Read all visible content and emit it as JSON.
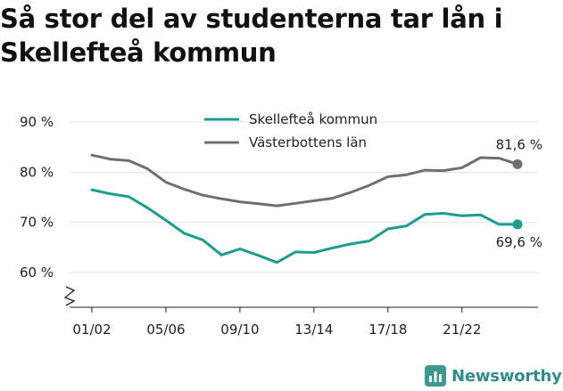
{
  "title": "Så stor del av studenterna tar lån i Skellefteå kommun",
  "brand": {
    "name": "Newsworthy",
    "icon": "bar-chart-icon",
    "color": "#3a9a92"
  },
  "chart_data": {
    "type": "line",
    "title": "Så stor del av studenterna tar lån i Skellefteå kommun",
    "xlabel": "",
    "ylabel": "",
    "ylim": [
      55,
      90
    ],
    "y_ticks": [
      {
        "value": 90,
        "label": "90 %"
      },
      {
        "value": 80,
        "label": "80 %"
      },
      {
        "value": 70,
        "label": "70 %"
      },
      {
        "value": 60,
        "label": "60 %"
      }
    ],
    "axis_break": true,
    "grid": true,
    "legend_position": "top-center",
    "x": [
      "01/02",
      "02/03",
      "03/04",
      "04/05",
      "05/06",
      "06/07",
      "07/08",
      "08/09",
      "09/10",
      "10/11",
      "11/12",
      "12/13",
      "13/14",
      "14/15",
      "15/16",
      "16/17",
      "17/18",
      "18/19",
      "19/20",
      "20/21",
      "21/22",
      "22/23",
      "23/24",
      "24/25"
    ],
    "x_tick_labels": [
      "01/02",
      "05/06",
      "09/10",
      "13/14",
      "17/18",
      "21/22"
    ],
    "series": [
      {
        "name": "Skellefteå kommun",
        "color": "#1a9e92",
        "values": [
          76.5,
          75.7,
          75.1,
          72.9,
          70.4,
          67.8,
          66.5,
          63.5,
          64.7,
          63.4,
          62.0,
          64.1,
          64.0,
          64.9,
          65.7,
          66.3,
          68.7,
          69.3,
          71.6,
          71.8,
          71.3,
          71.5,
          69.6,
          69.6
        ],
        "end_label": "69,6 %"
      },
      {
        "name": "Västerbottens län",
        "color": "#6f6f73",
        "values": [
          83.4,
          82.6,
          82.3,
          80.7,
          78.0,
          76.6,
          75.4,
          74.7,
          74.1,
          73.7,
          73.3,
          73.8,
          74.3,
          74.8,
          76.0,
          77.4,
          79.1,
          79.5,
          80.4,
          80.3,
          80.9,
          82.9,
          82.8,
          81.6
        ],
        "end_label": "81,6 %"
      }
    ]
  }
}
